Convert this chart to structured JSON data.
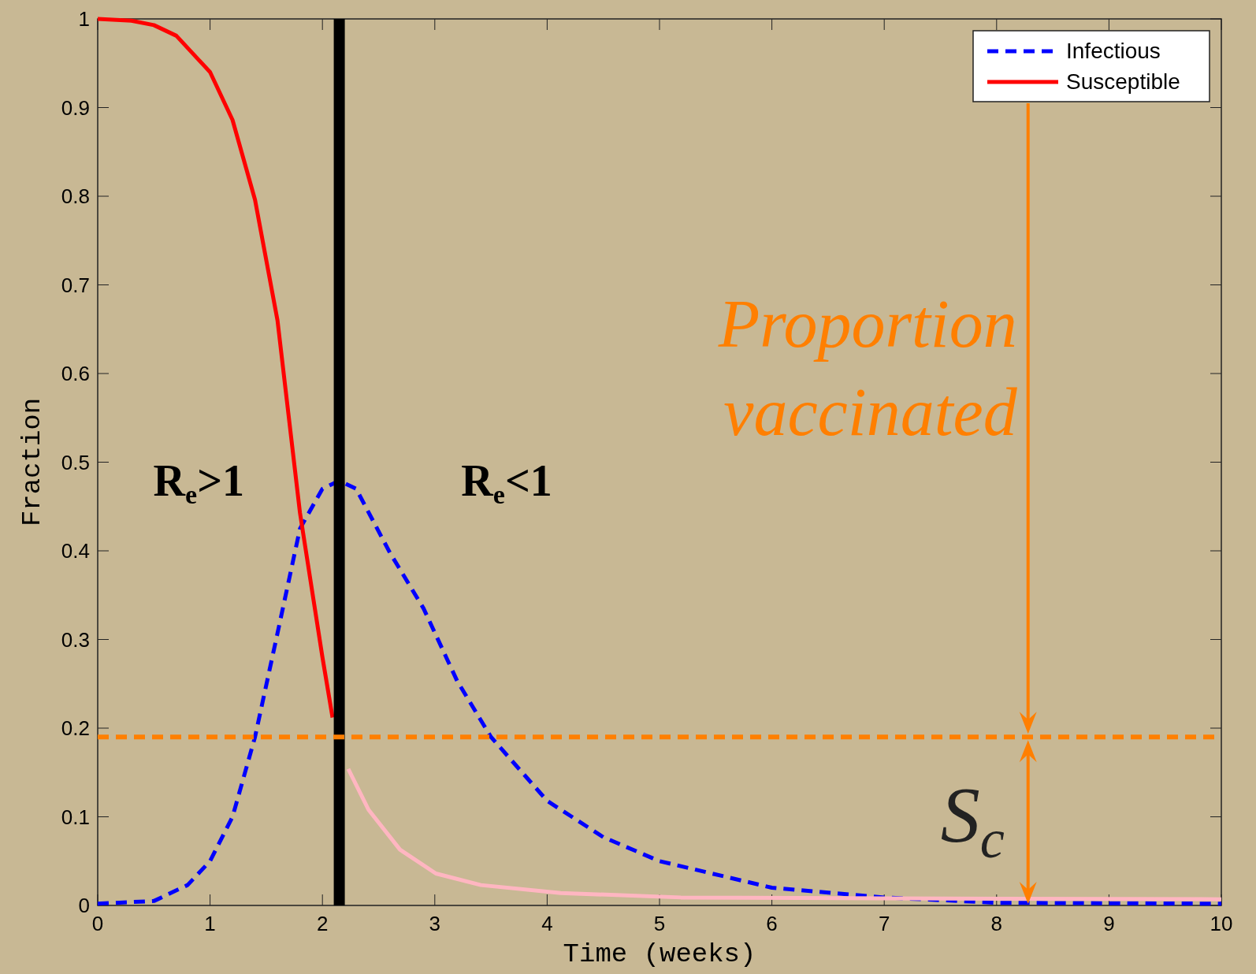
{
  "chart_data": {
    "type": "line",
    "xlabel": "Time (weeks)",
    "ylabel": "Fraction",
    "xlim": [
      0,
      10
    ],
    "ylim": [
      0,
      1
    ],
    "xticks": [
      0,
      1,
      2,
      3,
      4,
      5,
      6,
      7,
      8,
      9,
      10
    ],
    "yticks": [
      0,
      0.1,
      0.2,
      0.3,
      0.4,
      0.5,
      0.6,
      0.7,
      0.8,
      0.9,
      1
    ],
    "grid": false,
    "legend": "top right",
    "marker": "none",
    "series": [
      {
        "name": "Infectious",
        "color": "#0000ff",
        "line_style": "dashed",
        "x": [
          0,
          0.5,
          0.8,
          1,
          1.2,
          1.4,
          1.6,
          1.8,
          2,
          2.15,
          2.3,
          2.6,
          2.9,
          3.2,
          3.5,
          4,
          4.5,
          5,
          6,
          7,
          8,
          10
        ],
        "values": [
          0.002,
          0.005,
          0.023,
          0.05,
          0.1,
          0.19,
          0.307,
          0.425,
          0.47,
          0.479,
          0.47,
          0.398,
          0.335,
          0.253,
          0.19,
          0.118,
          0.077,
          0.05,
          0.02,
          0.009,
          0.003,
          0.002
        ]
      },
      {
        "name": "Susceptible",
        "color": "#ff0000",
        "line_style": "solid",
        "x": [
          0,
          0.3,
          0.5,
          0.7,
          1,
          1.2,
          1.4,
          1.6,
          1.8,
          2,
          2.09
        ],
        "values": [
          1,
          0.998,
          0.993,
          0.981,
          0.94,
          0.886,
          0.796,
          0.66,
          0.443,
          0.28,
          0.212
        ]
      },
      {
        "color": "#ffb6c1",
        "line_style": "solid",
        "x": [
          2.23,
          2.41,
          2.69,
          3.01,
          3.41,
          4.12,
          5.19,
          7,
          10
        ],
        "values": [
          0.154,
          0.108,
          0.063,
          0.036,
          0.023,
          0.014,
          0.009,
          0.008,
          0.007
        ]
      }
    ],
    "ref_lines": [
      {
        "axis": "x",
        "value": 2.15,
        "color": "#000000",
        "line_style": "solid"
      },
      {
        "axis": "y",
        "value": 0.19,
        "color": "#ff7f00",
        "line_style": "dashed"
      }
    ],
    "annotations": [
      "Proportion vaccinated",
      "R$_{e}$>1",
      "R$_{e}$<1",
      "S$_{c}$"
    ]
  }
}
